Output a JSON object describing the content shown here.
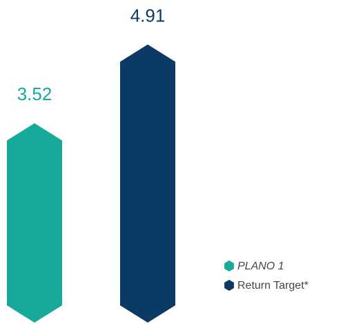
{
  "chart_data": {
    "type": "bar",
    "series": [
      {
        "name": "PLANO 1",
        "color": "#17a99a",
        "values": [
          3.52
        ]
      },
      {
        "name": "Return Target*",
        "color": "#0b3a64",
        "values": [
          4.91
        ]
      }
    ]
  }
}
